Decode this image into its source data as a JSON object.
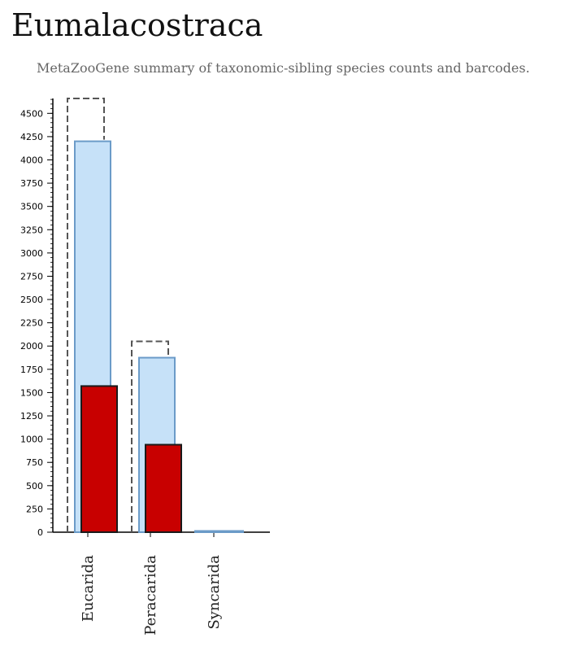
{
  "page": {
    "title": "Eumalacostraca",
    "subtitle": "MetaZooGene summary of taxonomic-sibling species counts and barcodes."
  },
  "colors": {
    "species_fill": "#c6e1f8",
    "species_stroke": "#6b9bc8",
    "barcodes_fill": "#c80000",
    "barcodes_stroke": "#1a1a1a",
    "total_stroke": "#555555",
    "axis": "#000000"
  },
  "chart_data": {
    "type": "bar",
    "categories": [
      "Eucarida",
      "Peracarida",
      "Syncarida"
    ],
    "series": [
      {
        "key": "total",
        "style": "dashed-outline",
        "values": [
          4660,
          2050,
          0
        ]
      },
      {
        "key": "species",
        "style": "light-blue",
        "values": [
          4200,
          1875,
          8
        ]
      },
      {
        "key": "barcodes",
        "style": "red",
        "values": [
          1570,
          940,
          0
        ]
      }
    ],
    "yticks": [
      0,
      250,
      500,
      750,
      1000,
      1250,
      1500,
      1750,
      2000,
      2250,
      2500,
      2750,
      3000,
      3250,
      3500,
      3750,
      4000,
      4250,
      4500
    ],
    "ylim": [
      0,
      4660
    ],
    "grid": false,
    "legend": "none",
    "xlabel": "",
    "ylabel": ""
  }
}
